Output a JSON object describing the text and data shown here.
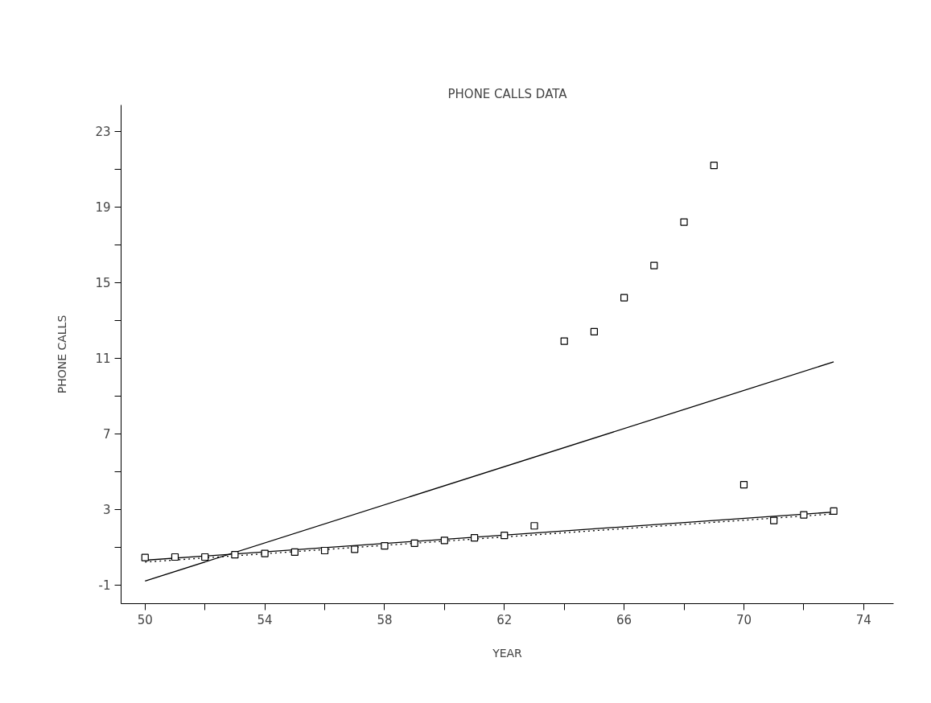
{
  "chart_data": {
    "type": "scatter",
    "title": "PHONE CALLS DATA",
    "xlabel": "YEAR",
    "ylabel": "PHONE CALLS",
    "xlim": [
      49.2,
      75
    ],
    "ylim": [
      -2,
      24.4
    ],
    "xticks": [
      50,
      {
        "value": 52,
        "label": null
      },
      54,
      {
        "value": 56,
        "label": null
      },
      58,
      {
        "value": 60,
        "label": null
      },
      62,
      {
        "value": 64,
        "label": null
      },
      66,
      {
        "value": 68,
        "label": null
      },
      70,
      {
        "value": 72,
        "label": null
      },
      74
    ],
    "yticks": [
      -1,
      {
        "value": 1,
        "label": null
      },
      3,
      {
        "value": 5,
        "label": null
      },
      7,
      {
        "value": 9,
        "label": null
      },
      11,
      {
        "value": 13,
        "label": null
      },
      15,
      {
        "value": 17,
        "label": null
      },
      19,
      {
        "value": 21,
        "label": null
      },
      23
    ],
    "grid": false,
    "series": [
      {
        "marker": "square",
        "color": "#000000",
        "x": [
          50,
          51,
          52,
          53,
          54,
          55,
          56,
          57,
          58,
          59,
          60,
          61,
          62,
          63,
          64,
          65,
          66,
          67,
          68,
          69,
          70,
          71,
          72,
          73
        ],
        "values": [
          0.44,
          0.47,
          0.47,
          0.59,
          0.66,
          0.73,
          0.81,
          0.88,
          1.06,
          1.2,
          1.35,
          1.49,
          1.61,
          2.12,
          11.9,
          12.4,
          14.2,
          15.9,
          18.2,
          21.2,
          4.3,
          2.4,
          2.7,
          2.9
        ]
      },
      {
        "type": "line",
        "line_style": "solid",
        "color": "#000000",
        "x": [
          50,
          73
        ],
        "values": [
          -0.8,
          10.8
        ]
      },
      {
        "type": "line",
        "line_style": "solid",
        "color": "#000000",
        "x": [
          50,
          73
        ],
        "values": [
          0.3,
          2.85
        ]
      },
      {
        "type": "line",
        "line_style": "dotted",
        "color": "#000000",
        "x": [
          50,
          73
        ],
        "values": [
          0.2,
          2.75
        ]
      }
    ]
  }
}
